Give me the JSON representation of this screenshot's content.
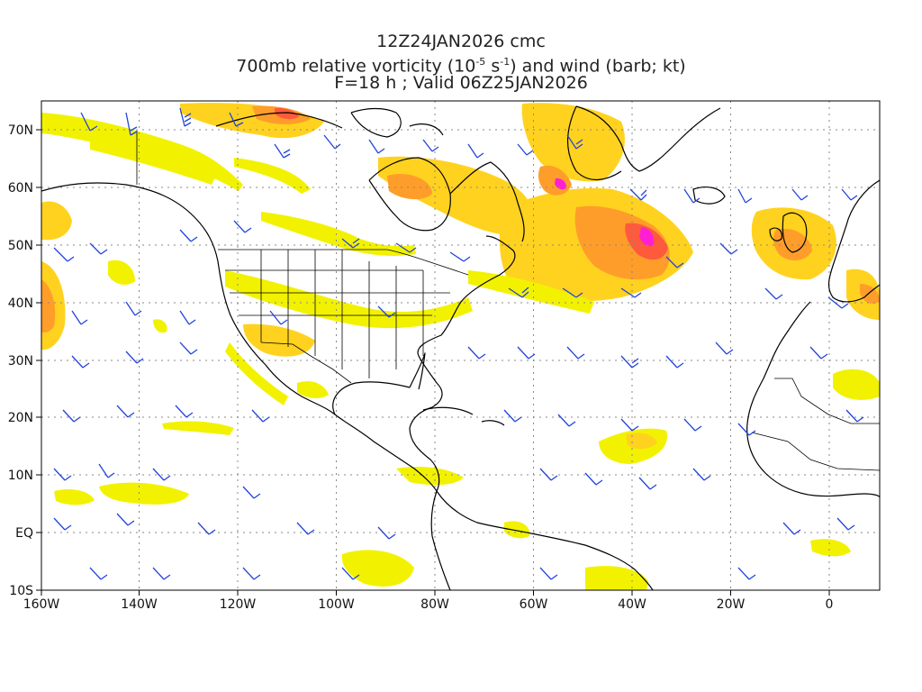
{
  "title": {
    "line1": "12Z24JAN2026 cmc",
    "line2_prefix": "700mb relative vorticity (10",
    "line2_exp1": "-5",
    "line2_mid": " s",
    "line2_exp2": "-1",
    "line2_suffix": ") and wind (barb; kt)",
    "line3": "F=18 h ; Valid 06Z25JAN2026"
  },
  "axes": {
    "lon_labels": [
      "160W",
      "140W",
      "120W",
      "100W",
      "80W",
      "60W",
      "40W",
      "20W",
      "0"
    ],
    "lon_values": [
      -160,
      -140,
      -120,
      -100,
      -80,
      -60,
      -40,
      -20,
      0
    ],
    "lat_labels": [
      "70N",
      "60N",
      "50N",
      "40N",
      "30N",
      "20N",
      "10N",
      "EQ",
      "10S"
    ],
    "lat_values": [
      70,
      60,
      50,
      40,
      30,
      20,
      10,
      0,
      -10
    ],
    "lon_range": [
      -160,
      10
    ],
    "lat_range": [
      -10,
      75
    ]
  },
  "colors": {
    "vort_low": "#f2f200",
    "vort_mid": "#ffd21f",
    "vort_high": "#ff9d2a",
    "vort_vhigh": "#ff5a3c",
    "vort_max": "#ff1fd2",
    "barb": "#2244dd",
    "coast": "#000000",
    "grid": "#888888"
  }
}
